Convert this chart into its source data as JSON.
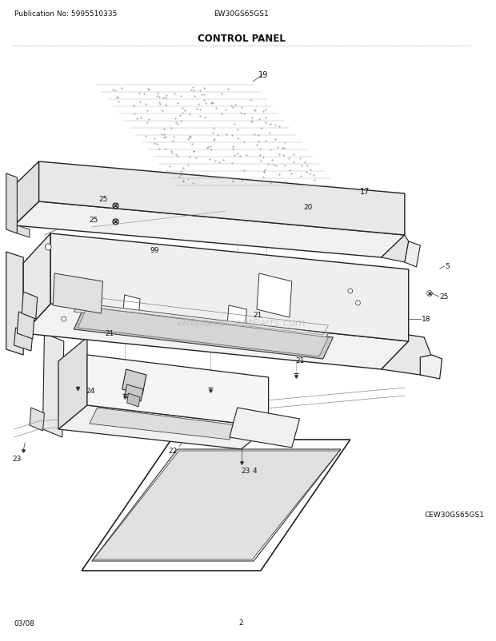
{
  "pub_no": "Publication No: 5995510335",
  "model": "EW30GS65GS1",
  "title": "CONTROL PANEL",
  "footer_left": "03/08",
  "footer_center": "2",
  "footer_model": "CEW30GS65GS1",
  "bg_color": "#ffffff",
  "lc": "#222222",
  "tc": "#222222"
}
